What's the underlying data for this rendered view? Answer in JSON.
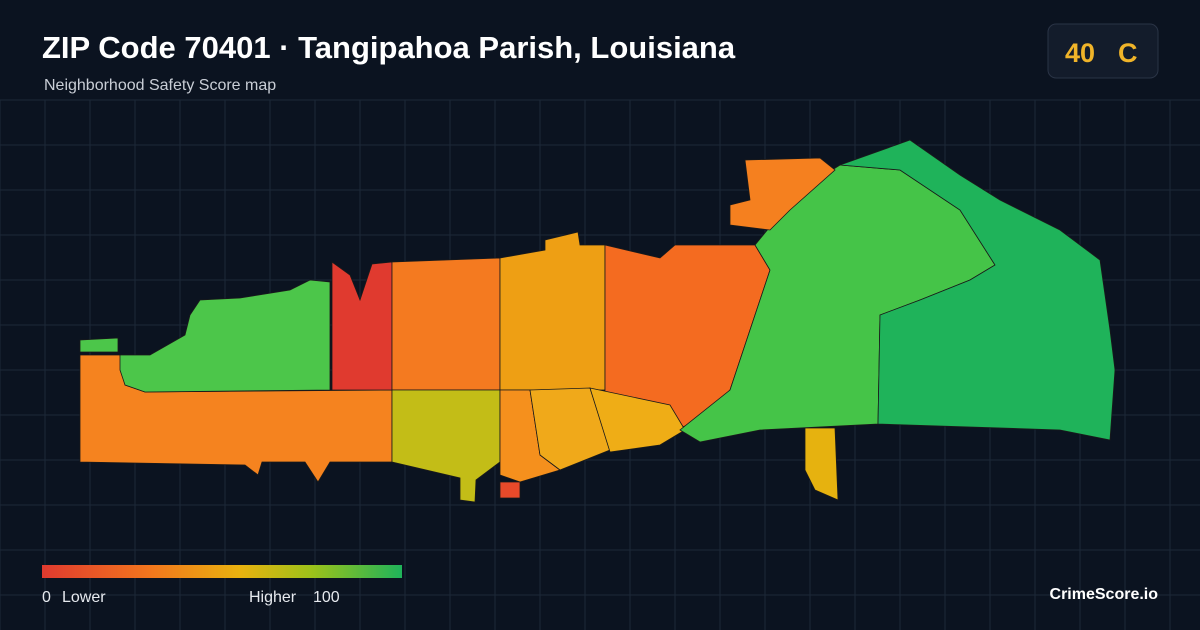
{
  "header": {
    "title": "ZIP Code 70401 · Tangipahoa Parish, Louisiana",
    "subtitle": "Neighborhood Safety Score map"
  },
  "score": {
    "value": "40",
    "grade": "C"
  },
  "legend": {
    "min": "0",
    "min_label": "Lower",
    "max_label": "Higher",
    "max": "100"
  },
  "brand": "CrimeScore.io"
}
